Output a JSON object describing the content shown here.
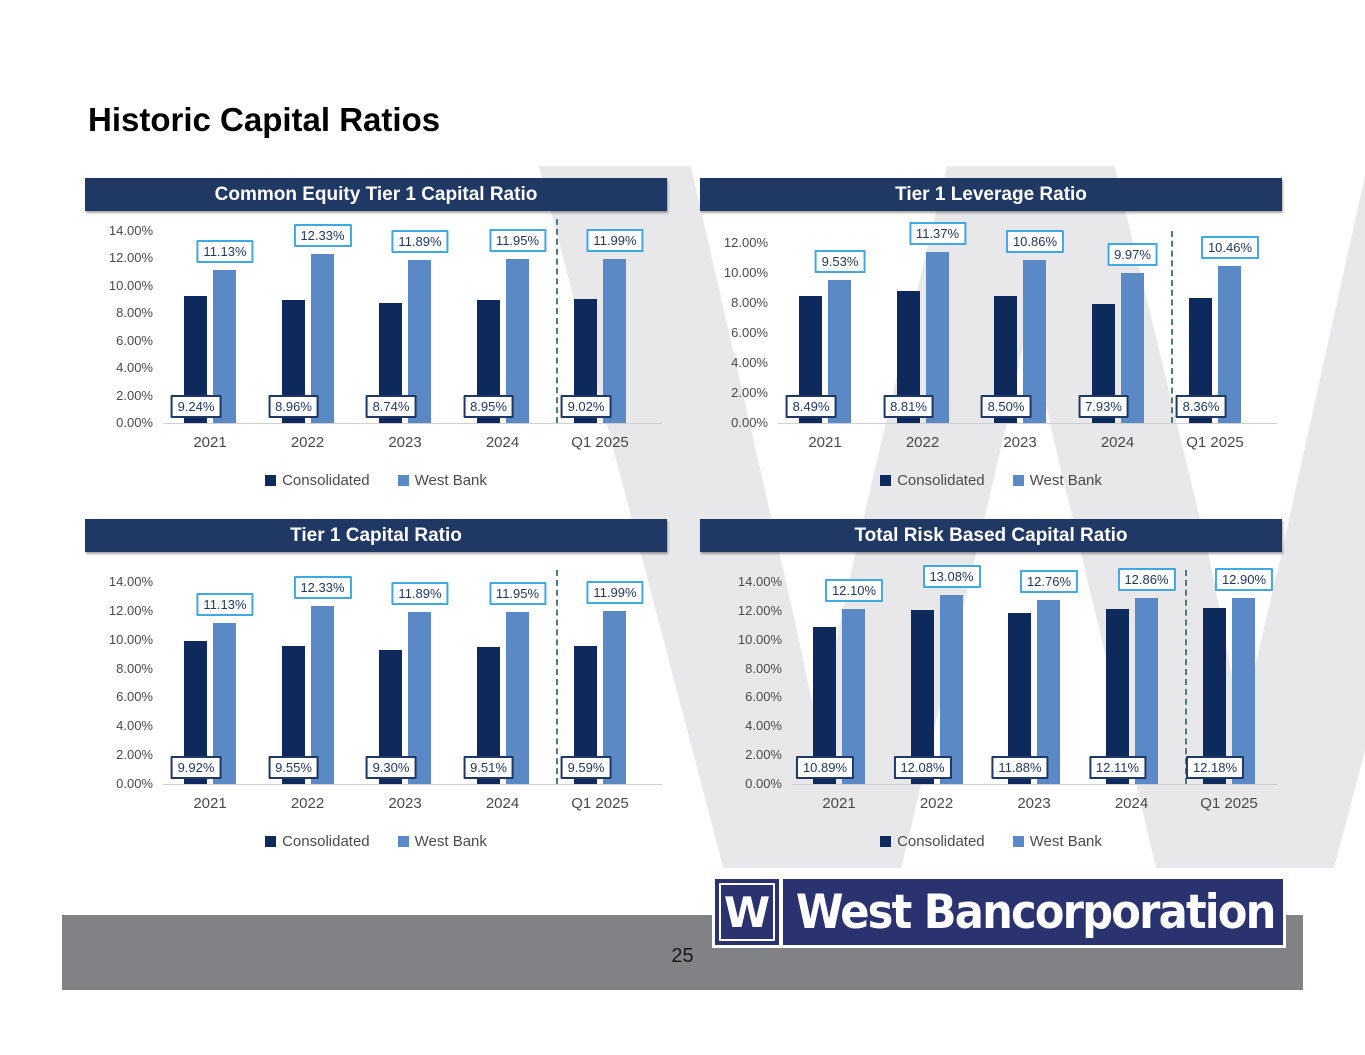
{
  "page": {
    "title": "Historic Capital Ratios",
    "page_number": "25",
    "watermark": "W",
    "logo": {
      "symbol": "W",
      "name": "West Bancorporation"
    }
  },
  "colors": {
    "title_bar": "#1F3864",
    "consolidated_bar": "#0E2A5C",
    "west_bank_bar": "#5B89C6",
    "consolidated_label_border": "#1F3864",
    "west_bank_label_border": "#41A9DE",
    "label_text": "#1F3864",
    "axis_text": "#4a4a4a",
    "separator_line": "#4E7B7E",
    "footer_bar": "#808285",
    "logo_navy": "#2B3270",
    "watermark_gray": "#E8E8EB"
  },
  "chart_data": [
    {
      "type": "bar",
      "title": "Common Equity Tier 1 Capital Ratio",
      "categories": [
        "2021",
        "2022",
        "2023",
        "2024",
        "Q1 2025"
      ],
      "series": [
        {
          "name": "Consolidated",
          "values": [
            9.24,
            8.96,
            8.74,
            8.95,
            9.02
          ],
          "labels": [
            "9.24%",
            "8.96%",
            "8.74%",
            "8.95%",
            "9.02%"
          ]
        },
        {
          "name": "West Bank",
          "values": [
            11.13,
            12.33,
            11.89,
            11.95,
            11.99
          ],
          "labels": [
            "11.13%",
            "12.33%",
            "11.89%",
            "11.95%",
            "11.99%"
          ]
        }
      ],
      "ylim": [
        0,
        14
      ],
      "ytick_labels": [
        "14.00%",
        "12.00%",
        "10.00%",
        "8.00%",
        "6.00%",
        "4.00%",
        "2.00%",
        "0.00%"
      ],
      "grid": false,
      "legend_position": "bottom",
      "separator_before_category": "Q1 2025"
    },
    {
      "type": "bar",
      "title": "Tier 1 Leverage Ratio",
      "categories": [
        "2021",
        "2022",
        "2023",
        "2024",
        "Q1 2025"
      ],
      "series": [
        {
          "name": "Consolidated",
          "values": [
            8.49,
            8.81,
            8.5,
            7.93,
            8.36
          ],
          "labels": [
            "8.49%",
            "8.81%",
            "8.50%",
            "7.93%",
            "8.36%"
          ]
        },
        {
          "name": "West Bank",
          "values": [
            9.53,
            11.37,
            10.86,
            9.97,
            10.46
          ],
          "labels": [
            "9.53%",
            "11.37%",
            "10.86%",
            "9.97%",
            "10.46%"
          ]
        }
      ],
      "ylim": [
        0,
        12
      ],
      "ytick_labels": [
        "12.00%",
        "10.00%",
        "8.00%",
        "6.00%",
        "4.00%",
        "2.00%",
        "0.00%"
      ],
      "grid": false,
      "legend_position": "bottom",
      "separator_before_category": "Q1 2025"
    },
    {
      "type": "bar",
      "title": "Tier 1 Capital Ratio",
      "categories": [
        "2021",
        "2022",
        "2023",
        "2024",
        "Q1 2025"
      ],
      "series": [
        {
          "name": "Consolidated",
          "values": [
            9.92,
            9.55,
            9.3,
            9.51,
            9.59
          ],
          "labels": [
            "9.92%",
            "9.55%",
            "9.30%",
            "9.51%",
            "9.59%"
          ]
        },
        {
          "name": "West Bank",
          "values": [
            11.13,
            12.33,
            11.89,
            11.95,
            11.99
          ],
          "labels": [
            "11.13%",
            "12.33%",
            "11.89%",
            "11.95%",
            "11.99%"
          ]
        }
      ],
      "ylim": [
        0,
        14
      ],
      "ytick_labels": [
        "14.00%",
        "12.00%",
        "10.00%",
        "8.00%",
        "6.00%",
        "4.00%",
        "2.00%",
        "0.00%"
      ],
      "grid": false,
      "legend_position": "bottom",
      "separator_before_category": "Q1 2025"
    },
    {
      "type": "bar",
      "title": "Total Risk Based Capital Ratio",
      "categories": [
        "2021",
        "2022",
        "2023",
        "2024",
        "Q1 2025"
      ],
      "series": [
        {
          "name": "Consolidated",
          "values": [
            10.89,
            12.08,
            11.88,
            12.11,
            12.18
          ],
          "labels": [
            "10.89%",
            "12.08%",
            "11.88%",
            "12.11%",
            "12.18%"
          ]
        },
        {
          "name": "West Bank",
          "values": [
            12.1,
            13.08,
            12.76,
            12.86,
            12.9
          ],
          "labels": [
            "12.10%",
            "13.08%",
            "12.76%",
            "12.86%",
            "12.90%"
          ]
        }
      ],
      "ylim": [
        0,
        14
      ],
      "ytick_labels": [
        "14.00%",
        "12.00%",
        "10.00%",
        "8.00%",
        "6.00%",
        "4.00%",
        "2.00%",
        "0.00%"
      ],
      "grid": false,
      "legend_position": "bottom",
      "separator_before_category": "Q1 2025"
    }
  ]
}
